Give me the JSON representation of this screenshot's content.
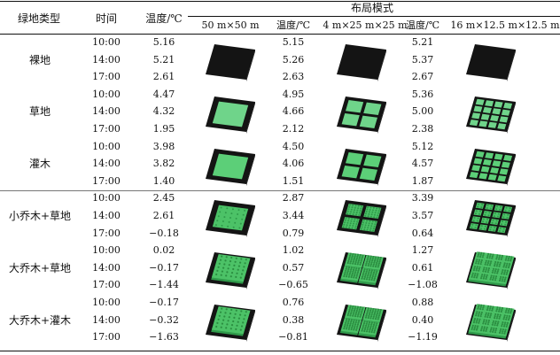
{
  "header": {
    "type_col": "绿地类型",
    "time_col": "时间",
    "temp_col": "温度/℃",
    "layout_group": "布局模式",
    "modes": [
      {
        "label": "50 m×50 m",
        "temp_label": "温度/℃"
      },
      {
        "label": "4 m×25 m×25 m",
        "temp_label": "温度/℃"
      },
      {
        "label": "16 m×12.5 m×12.5 m",
        "temp_label": ""
      }
    ]
  },
  "rows": [
    {
      "type": "裸地",
      "green": "none",
      "times": [
        "10:00",
        "14:00",
        "17:00"
      ],
      "temps": [
        "5.16",
        "5.21",
        "2.61"
      ],
      "m1": [
        "5.15",
        "5.26",
        "2.63"
      ],
      "m2": [
        "5.21",
        "5.37",
        "2.67"
      ]
    },
    {
      "type": "草地",
      "green": "grass",
      "times": [
        "10:00",
        "14:00",
        "17:00"
      ],
      "temps": [
        "4.47",
        "4.32",
        "1.95"
      ],
      "m1": [
        "4.95",
        "4.66",
        "2.12"
      ],
      "m2": [
        "5.36",
        "5.00",
        "2.38"
      ]
    },
    {
      "type": "灌木",
      "green": "shrub",
      "times": [
        "10:00",
        "14:00",
        "17:00"
      ],
      "temps": [
        "3.98",
        "3.82",
        "1.40"
      ],
      "m1": [
        "4.50",
        "4.06",
        "1.51"
      ],
      "m2": [
        "5.12",
        "4.57",
        "1.87"
      ]
    },
    {
      "type": "小乔木+草地",
      "green": "smalltree",
      "times": [
        "10:00",
        "14:00",
        "17:00"
      ],
      "temps": [
        "2.45",
        "2.61",
        "−0.18"
      ],
      "m1": [
        "2.87",
        "3.44",
        "0.79"
      ],
      "m2": [
        "3.39",
        "3.57",
        "0.64"
      ]
    },
    {
      "type": "大乔木+草地",
      "green": "bigtree",
      "times": [
        "10:00",
        "14:00",
        "17:00"
      ],
      "temps": [
        "0.02",
        "−0.17",
        "−1.44"
      ],
      "m1": [
        "1.02",
        "0.57",
        "−0.65"
      ],
      "m2": [
        "1.27",
        "0.61",
        "−1.08"
      ]
    },
    {
      "type": "大乔木+灌木",
      "green": "bigtree2",
      "times": [
        "10:00",
        "14:00",
        "17:00"
      ],
      "temps": [
        "−0.17",
        "−0.32",
        "−1.63"
      ],
      "m1": [
        "0.76",
        "0.38",
        "−0.81"
      ],
      "m2": [
        "0.88",
        "0.40",
        "−1.19"
      ]
    }
  ],
  "colors": {
    "base": "#141414",
    "green": "#6fd48a",
    "green_dark": "#2f9a4a",
    "canopy": "#4cc267"
  }
}
